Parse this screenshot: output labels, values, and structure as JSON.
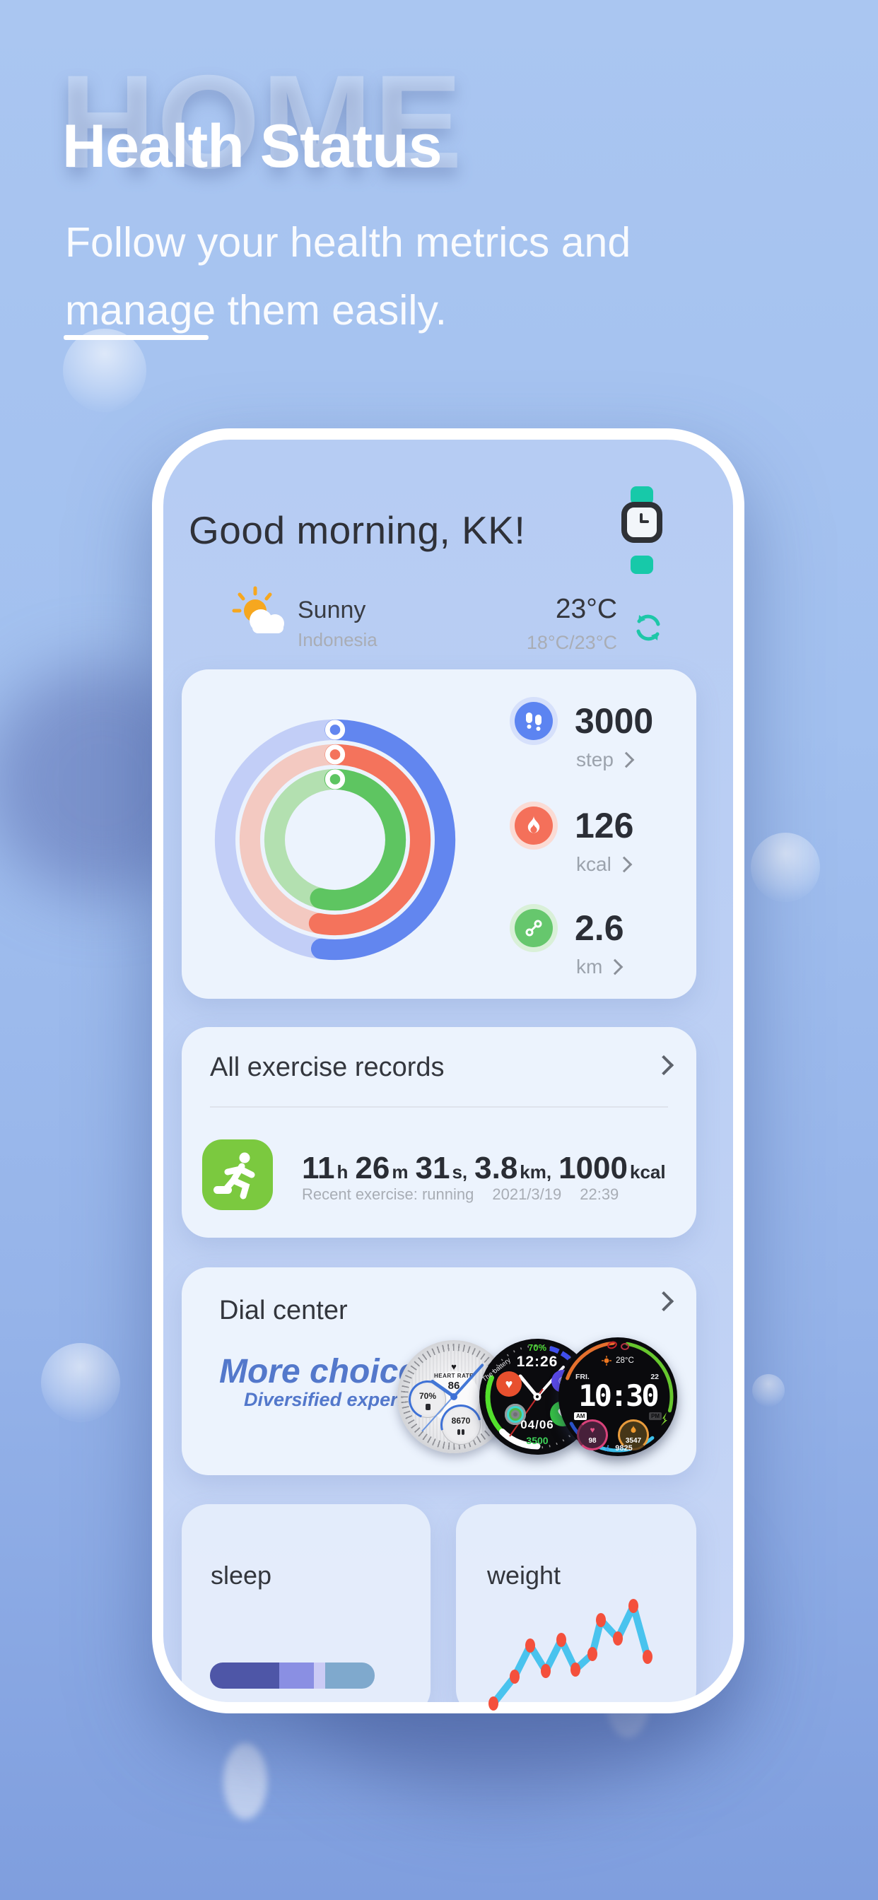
{
  "header": {
    "watermark": "HOME",
    "title": "Health Status",
    "subtitle1": "Follow your health metrics and",
    "subtitle2": "manage them easily."
  },
  "greeting": {
    "text": "Good morning,  KK!"
  },
  "weather": {
    "condition": "Sunny",
    "location": "Indonesia",
    "temp": "23°C",
    "range": "18°C/23°C"
  },
  "activity": {
    "rings": [
      {
        "name": "steps",
        "color": "#6286EF",
        "track": "#C2CEf7",
        "progress": 52
      },
      {
        "name": "calories",
        "color": "#F4735C",
        "track": "#F3C9C1",
        "progress": 53
      },
      {
        "name": "distance",
        "color": "#5EC561",
        "track": "#B3E0B0",
        "progress": 54
      }
    ],
    "stats": [
      {
        "value": "3000",
        "unit": "step"
      },
      {
        "value": "126",
        "unit": "kcal"
      },
      {
        "value": "2.6",
        "unit": "km"
      }
    ]
  },
  "exercise": {
    "title": "All exercise records",
    "metrics": [
      {
        "v": "11",
        "u": "h"
      },
      {
        "v": "26",
        "u": "m"
      },
      {
        "v": "31",
        "u": "s,"
      },
      {
        "v": "3.8",
        "u": "km,"
      },
      {
        "v": "1000",
        "u": "kcal"
      }
    ],
    "note": "Recent exercise: running",
    "date": "2021/3/19",
    "time": "22:39"
  },
  "dial": {
    "title": "Dial center",
    "headline": "More choices",
    "subheadline": "Diversified experience",
    "face1": {
      "heart": "♥",
      "label": "HEART RATE",
      "value": "86",
      "subdial_left": "70%",
      "subdial_bottom": "8670",
      "date_window": "M"
    },
    "face2": {
      "battery_label": "The battery",
      "battery": "70%",
      "time": "12:26",
      "date": "04/06",
      "steps": "3500",
      "side_label": "step",
      "heart": "♥",
      "moon": "☾"
    },
    "face3": {
      "temp": "28°C",
      "day": "FRI.",
      "date": "22",
      "time": "10:30",
      "ampm": "AM",
      "pm": "PM",
      "heart_icon": "♥",
      "heart_rate": "98",
      "calories": "3547",
      "steps": "9825"
    }
  },
  "sleep": {
    "title": "sleep",
    "segments": [
      {
        "color": "#4E56A7",
        "pct": 42
      },
      {
        "color": "#8A8FE3",
        "pct": 21
      },
      {
        "color": "#CBCBF5",
        "pct": 7
      },
      {
        "color": "#7FA9CD",
        "pct": 30
      }
    ]
  },
  "weight": {
    "title": "weight",
    "line_color": "#49C3EE",
    "dot_color": "#F4503C",
    "points": [
      [
        10,
        158
      ],
      [
        40,
        120
      ],
      [
        62,
        76
      ],
      [
        84,
        112
      ],
      [
        106,
        68
      ],
      [
        126,
        110
      ],
      [
        150,
        88
      ],
      [
        162,
        40
      ],
      [
        186,
        66
      ],
      [
        208,
        20
      ],
      [
        228,
        92
      ]
    ]
  },
  "colors": {
    "accent_teal": "#17C9A9",
    "card_bg": "#EEF4FD",
    "blue": "#6286EF",
    "red": "#F4735C",
    "green": "#5EC561"
  }
}
